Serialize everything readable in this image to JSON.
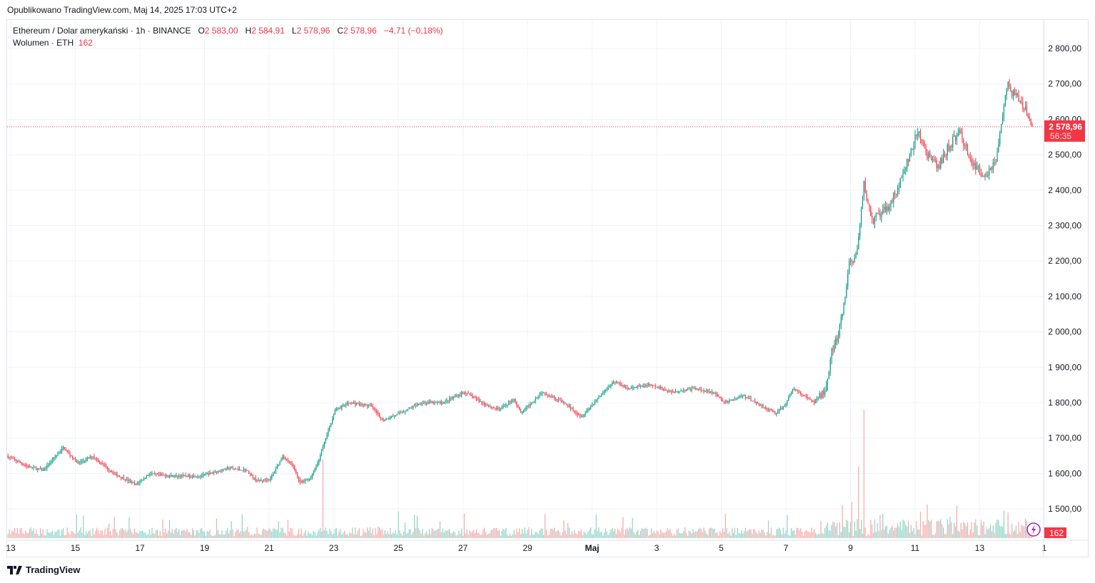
{
  "published": "Opublikowano TradingView.com, Maj 14, 2025 17:03 UTC+2",
  "legend": {
    "symbol": "Ethereum / Dolar amerykański · 1h · BINANCE",
    "o_label": "O",
    "o": "2 583,00",
    "h_label": "H",
    "h": "2 584,91",
    "l_label": "L",
    "l": "2 578,96",
    "c_label": "C",
    "c": "2 578,96",
    "change": "−4,71 (−0,18%)",
    "volume_label": "Wolumen · ETH",
    "volume": "162"
  },
  "last_price": {
    "price": "2 578,96",
    "countdown": "56:35",
    "volume": "162"
  },
  "footer": {
    "brand": "TradingView"
  },
  "colors": {
    "up": "#089981",
    "down": "#f23645",
    "up_vol": "#8fd3c6",
    "down_vol": "#f7a9a7"
  },
  "chart_data": {
    "type": "candlestick",
    "title": "Ethereum / Dolar amerykański · 1h · BINANCE",
    "x_unit": "hours since Apr 13 00:00",
    "ylim": [
      1450,
      2850
    ],
    "y_ticks": [
      "2 800,00",
      "2 700,00",
      "2 600,00",
      "2 500,00",
      "2 400,00",
      "2 300,00",
      "2 200,00",
      "2 100,00",
      "2 000,00",
      "1 900,00",
      "1 800,00",
      "1 700,00",
      "1 600,00",
      "1 500,00"
    ],
    "y_tick_values": [
      2800,
      2700,
      2600,
      2500,
      2400,
      2300,
      2200,
      2100,
      2000,
      1900,
      1800,
      1700,
      1600,
      1500
    ],
    "x_ticks": [
      "13",
      "15",
      "17",
      "19",
      "21",
      "23",
      "25",
      "27",
      "29",
      "Maj",
      "3",
      "5",
      "7",
      "9",
      "11",
      "13",
      "1"
    ],
    "x_tick_hours": [
      0,
      48,
      96,
      144,
      192,
      240,
      288,
      336,
      384,
      432,
      480,
      528,
      576,
      624,
      672,
      720,
      768
    ],
    "price_path": [
      [
        -3,
        1649
      ],
      [
        13,
        1619
      ],
      [
        24,
        1609
      ],
      [
        39,
        1673
      ],
      [
        50,
        1629
      ],
      [
        61,
        1649
      ],
      [
        77,
        1599
      ],
      [
        93,
        1569
      ],
      [
        103,
        1599
      ],
      [
        119,
        1593
      ],
      [
        141,
        1593
      ],
      [
        162,
        1615
      ],
      [
        175,
        1609
      ],
      [
        183,
        1579
      ],
      [
        193,
        1585
      ],
      [
        202,
        1649
      ],
      [
        210,
        1620
      ],
      [
        215,
        1573
      ],
      [
        223,
        1589
      ],
      [
        228,
        1629
      ],
      [
        235,
        1710
      ],
      [
        241,
        1780
      ],
      [
        252,
        1800
      ],
      [
        268,
        1790
      ],
      [
        276,
        1750
      ],
      [
        289,
        1770
      ],
      [
        305,
        1800
      ],
      [
        321,
        1800
      ],
      [
        337,
        1830
      ],
      [
        353,
        1794
      ],
      [
        363,
        1780
      ],
      [
        374,
        1810
      ],
      [
        379,
        1770
      ],
      [
        395,
        1830
      ],
      [
        411,
        1800
      ],
      [
        424,
        1760
      ],
      [
        438,
        1820
      ],
      [
        448,
        1860
      ],
      [
        459,
        1840
      ],
      [
        475,
        1850
      ],
      [
        491,
        1830
      ],
      [
        507,
        1840
      ],
      [
        522,
        1830
      ],
      [
        530,
        1800
      ],
      [
        544,
        1820
      ],
      [
        554,
        1800
      ],
      [
        568,
        1770
      ],
      [
        575,
        1790
      ],
      [
        581,
        1840
      ],
      [
        597,
        1800
      ],
      [
        605,
        1840
      ],
      [
        610,
        1940
      ],
      [
        615,
        1990
      ],
      [
        619,
        2070
      ],
      [
        623,
        2192
      ],
      [
        629,
        2222
      ],
      [
        634,
        2414
      ],
      [
        640,
        2313
      ],
      [
        650,
        2343
      ],
      [
        658,
        2394
      ],
      [
        666,
        2474
      ],
      [
        674,
        2564
      ],
      [
        682,
        2494
      ],
      [
        689,
        2464
      ],
      [
        697,
        2524
      ],
      [
        705,
        2564
      ],
      [
        716,
        2464
      ],
      [
        724,
        2444
      ],
      [
        732,
        2484
      ],
      [
        737,
        2615
      ],
      [
        741,
        2695
      ],
      [
        748,
        2655
      ],
      [
        753,
        2635
      ],
      [
        759,
        2579
      ]
    ],
    "volume_spikes": [
      [
        232,
        1640
      ],
      [
        634,
        1780
      ],
      [
        630,
        1620
      ],
      [
        625,
        1520
      ],
      [
        618,
        1510
      ],
      [
        703,
        1510
      ],
      [
        741,
        1490
      ]
    ]
  }
}
